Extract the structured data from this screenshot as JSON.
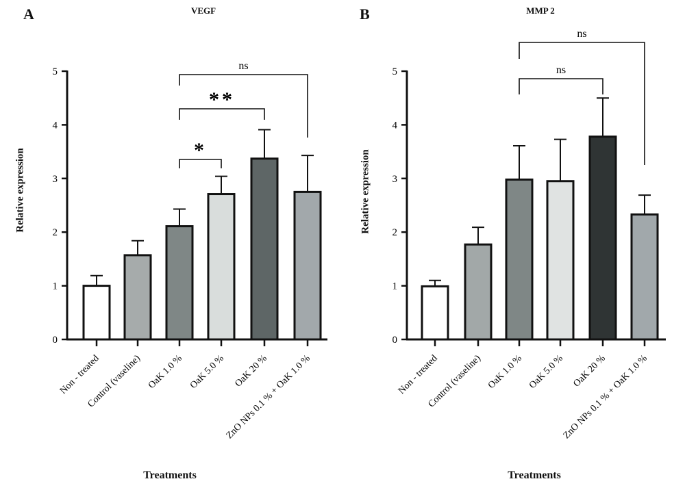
{
  "panels": [
    {
      "letter": "A",
      "chart_data": {
        "type": "bar",
        "title": "VEGF",
        "xlabel": "Treatments",
        "ylabel": "Relative expression",
        "ylim": [
          0,
          5
        ],
        "yticks": [
          0,
          1,
          2,
          3,
          4,
          5
        ],
        "categories": [
          "Non - treated",
          "Control (vaseline)",
          "OaK 1.0 %",
          "OaK 5.0 %",
          "OaK 20 %",
          "ZnO NPs 0.1 % + OaK 1.0 %"
        ],
        "values": [
          1.0,
          1.57,
          2.11,
          2.71,
          3.37,
          2.75
        ],
        "errors": [
          0.19,
          0.27,
          0.32,
          0.33,
          0.54,
          0.68
        ],
        "bar_colors": [
          "#ffffff",
          "#a6abab",
          "#7f8786",
          "#d9dddc",
          "#5e6666",
          "#a2a8ab"
        ],
        "significance": [
          {
            "from": 2,
            "to": 3,
            "label": "*"
          },
          {
            "from": 2,
            "to": 4,
            "label": "**"
          },
          {
            "from": 2,
            "to": 5,
            "label": "ns"
          }
        ]
      }
    },
    {
      "letter": "B",
      "chart_data": {
        "type": "bar",
        "title": "MMP 2",
        "xlabel": "Treatments",
        "ylabel": "Relative expression",
        "ylim": [
          0,
          5
        ],
        "yticks": [
          0,
          1,
          2,
          3,
          4,
          5
        ],
        "categories": [
          "Non - treated",
          "Control (vaseline)",
          "OaK 1.0 %",
          "OaK 5.0 %",
          "OaK 20 %",
          "ZnO NPs 0.1 % + OaK 1.0 %"
        ],
        "values": [
          0.99,
          1.77,
          2.98,
          2.95,
          3.78,
          2.33
        ],
        "errors": [
          0.11,
          0.32,
          0.63,
          0.78,
          0.72,
          0.36
        ],
        "bar_colors": [
          "#ffffff",
          "#a2a8a8",
          "#7f8786",
          "#e0e3e2",
          "#2f3434",
          "#a1a8ab"
        ],
        "significance": [
          {
            "from": 2,
            "to": 4,
            "label": "ns"
          },
          {
            "from": 2,
            "to": 5,
            "label": "ns"
          }
        ]
      }
    }
  ]
}
